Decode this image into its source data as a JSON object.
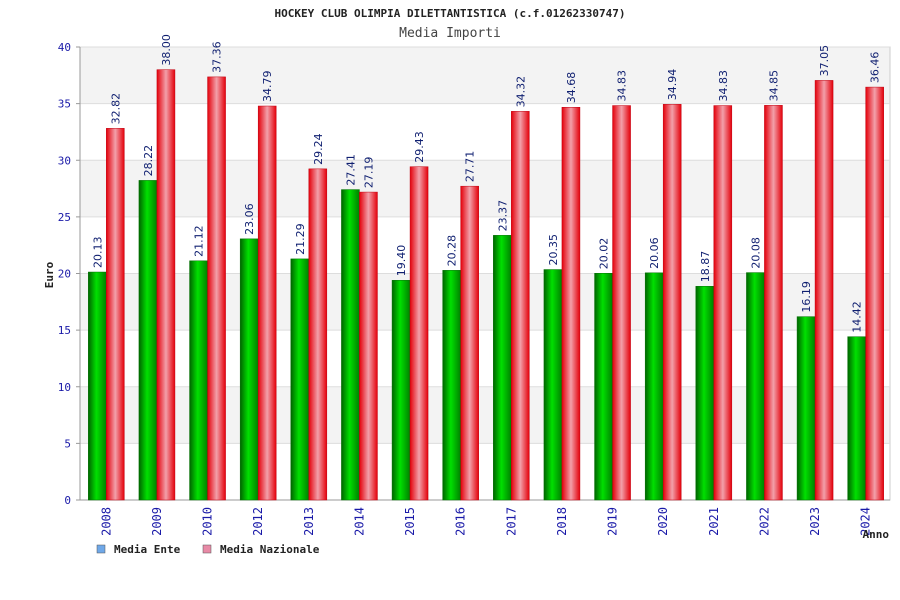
{
  "chart_data": {
    "type": "bar",
    "title": "HOCKEY CLUB OLIMPIA DILETTANTISTICA (c.f.01262330747)",
    "subtitle": "Media Importi",
    "xlabel": "Anno",
    "ylabel": "Euro",
    "ylim": [
      0,
      40
    ],
    "yticks": [
      "0",
      "5",
      "10",
      "15",
      "20",
      "25",
      "30",
      "35",
      "40"
    ],
    "grid": true,
    "legend_position": "bottom-left",
    "categories": [
      "2008",
      "2009",
      "2010",
      "2012",
      "2013",
      "2014",
      "2015",
      "2016",
      "2017",
      "2018",
      "2019",
      "2020",
      "2021",
      "2022",
      "2023",
      "2024"
    ],
    "series": [
      {
        "name": "Media Ente",
        "color": "#00b400",
        "legend_color": "#6fa8e8",
        "values": [
          20.13,
          28.22,
          21.12,
          23.06,
          21.29,
          27.41,
          19.4,
          20.28,
          23.37,
          20.35,
          20.02,
          20.06,
          18.87,
          20.08,
          16.19,
          14.42
        ],
        "labels": [
          "20.13",
          "28.22",
          "21.12",
          "23.06",
          "21.29",
          "27.41",
          "19.40",
          "20.28",
          "23.37",
          "20.35",
          "20.02",
          "20.06",
          "18.87",
          "20.08",
          "16.19",
          "14.42"
        ]
      },
      {
        "name": "Media Nazionale",
        "color": "#e8000f",
        "legend_color": "#e88aa6",
        "values": [
          32.82,
          38.0,
          37.36,
          34.79,
          29.24,
          27.19,
          29.43,
          27.71,
          34.32,
          34.68,
          34.83,
          34.94,
          34.83,
          34.85,
          37.05,
          36.46
        ],
        "labels": [
          "32.82",
          "38.00",
          "37.36",
          "34.79",
          "29.24",
          "27.19",
          "29.43",
          "27.71",
          "34.32",
          "34.68",
          "34.83",
          "34.94",
          "34.83",
          "34.85",
          "37.05",
          "36.46"
        ]
      }
    ]
  }
}
